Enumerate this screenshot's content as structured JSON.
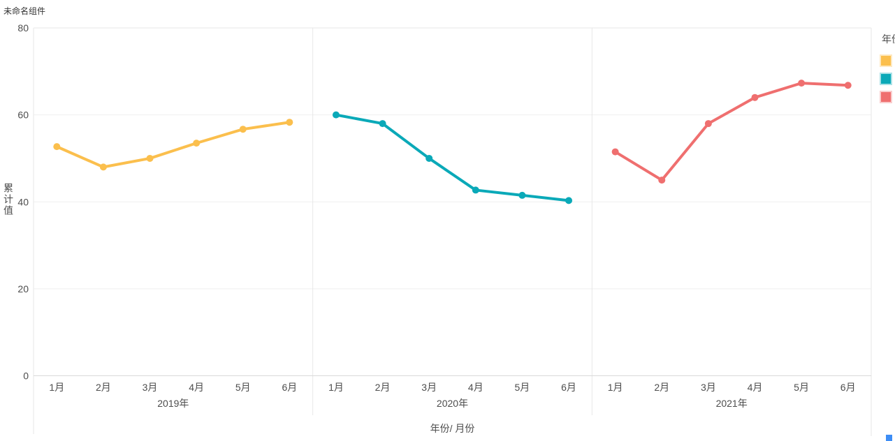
{
  "ui": {
    "background": "#ffffff",
    "resize_handle_color": "#3D8DF5",
    "grid_color": "#efefef",
    "border_color": "#e7e7e7",
    "axis_line_color": "#d9d9d9"
  },
  "chart_data": {
    "type": "line",
    "title": "未命名组件",
    "xlabel": "年份/ 月份",
    "ylabel": "累计值",
    "ylim": [
      0,
      80
    ],
    "yticks": [
      0,
      20,
      40,
      60,
      80
    ],
    "categories": [
      "1月",
      "2月",
      "3月",
      "4月",
      "5月",
      "6月"
    ],
    "facets": "three column panels, one per year",
    "grid": true,
    "legend": {
      "title": "年份",
      "position": "right",
      "clipped_at_right_edge": true
    },
    "series": [
      {
        "name": "2019年",
        "color": "#FBBF4D",
        "values": [
          52.7,
          48,
          50,
          53.5,
          56.7,
          58.3
        ]
      },
      {
        "name": "2020年",
        "color": "#0AA9B8",
        "values": [
          60,
          58,
          50,
          42.7,
          41.5,
          40.3
        ]
      },
      {
        "name": "2021年",
        "color": "#EF6F6F",
        "values": [
          51.5,
          45,
          58,
          64,
          67.3,
          66.8
        ]
      }
    ]
  }
}
